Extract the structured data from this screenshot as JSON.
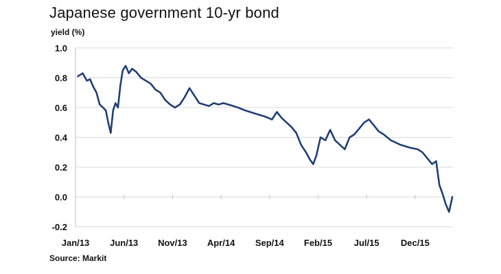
{
  "chart_data": {
    "type": "line",
    "title": "Japanese government 10-yr bond",
    "ylabel": "yield (%)",
    "xlabel": "",
    "source": "Source: Markit",
    "ylim": [
      -0.2,
      1.0
    ],
    "yticks": [
      "1.0",
      "0.8",
      "0.6",
      "0.4",
      "0.2",
      "0.0",
      "-0.2"
    ],
    "ytick_values": [
      1.0,
      0.8,
      0.6,
      0.4,
      0.2,
      0.0,
      -0.2
    ],
    "xticks": [
      "Jan/13",
      "Jun/13",
      "Nov/13",
      "Apr/14",
      "Sep/14",
      "Feb/15",
      "Jul/15",
      "Dec/15"
    ],
    "xtick_dates": [
      "2013-01",
      "2013-06",
      "2013-11",
      "2014-04",
      "2014-09",
      "2015-02",
      "2015-07",
      "2015-12"
    ],
    "grid": true,
    "line_color": "#1f3f73",
    "series": [
      {
        "x": [
          "2013-01",
          "2013-01",
          "2013-02",
          "2013-02",
          "2013-02",
          "2013-03",
          "2013-03",
          "2013-03",
          "2013-04",
          "2013-04",
          "2013-04",
          "2013-04",
          "2013-05",
          "2013-05",
          "2013-05",
          "2013-05",
          "2013-06",
          "2013-06",
          "2013-06",
          "2013-07",
          "2013-07",
          "2013-08",
          "2013-08",
          "2013-09",
          "2013-09",
          "2013-10",
          "2013-10",
          "2013-11",
          "2013-11",
          "2013-12",
          "2013-12",
          "2014-01",
          "2014-01",
          "2014-02",
          "2014-02",
          "2014-03",
          "2014-03",
          "2014-04",
          "2014-04",
          "2014-05",
          "2014-05",
          "2014-06",
          "2014-07",
          "2014-08",
          "2014-09",
          "2014-09",
          "2014-10",
          "2014-10",
          "2014-11",
          "2014-11",
          "2014-12",
          "2014-12",
          "2015-01",
          "2015-01",
          "2015-01",
          "2015-02",
          "2015-02",
          "2015-03",
          "2015-03",
          "2015-04",
          "2015-04",
          "2015-05",
          "2015-05",
          "2015-06",
          "2015-06",
          "2015-07",
          "2015-07",
          "2015-08",
          "2015-08",
          "2015-09",
          "2015-10",
          "2015-11",
          "2015-12",
          "2015-12",
          "2016-01",
          "2016-01",
          "2016-02",
          "2016-02",
          "2016-02",
          "2016-03",
          "2016-03",
          "2016-03"
        ],
        "values": [
          0.81,
          0.83,
          0.78,
          0.79,
          0.74,
          0.7,
          0.62,
          0.6,
          0.58,
          0.5,
          0.43,
          0.58,
          0.63,
          0.6,
          0.75,
          0.85,
          0.88,
          0.83,
          0.86,
          0.84,
          0.8,
          0.78,
          0.76,
          0.72,
          0.7,
          0.65,
          0.62,
          0.6,
          0.62,
          0.67,
          0.73,
          0.68,
          0.63,
          0.62,
          0.61,
          0.63,
          0.62,
          0.63,
          0.62,
          0.61,
          0.6,
          0.58,
          0.56,
          0.54,
          0.52,
          0.57,
          0.53,
          0.5,
          0.47,
          0.43,
          0.35,
          0.3,
          0.25,
          0.22,
          0.28,
          0.4,
          0.38,
          0.45,
          0.38,
          0.35,
          0.32,
          0.4,
          0.42,
          0.46,
          0.5,
          0.52,
          0.48,
          0.44,
          0.42,
          0.38,
          0.35,
          0.33,
          0.32,
          0.3,
          0.26,
          0.22,
          0.24,
          0.08,
          0.02,
          -0.05,
          -0.1,
          0.0
        ]
      }
    ]
  }
}
